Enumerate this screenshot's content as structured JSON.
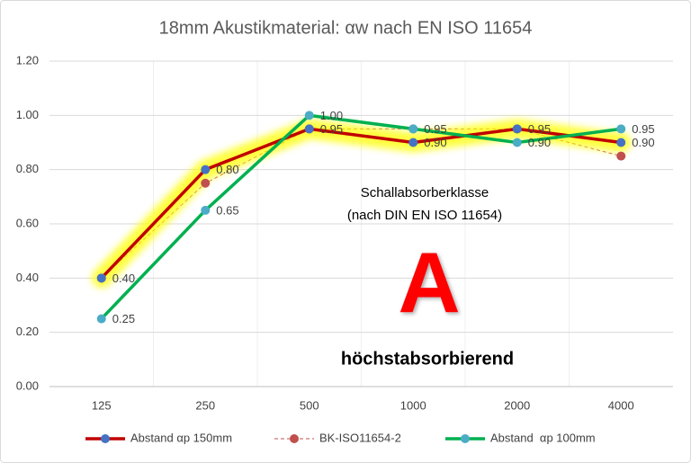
{
  "chart_data": {
    "type": "line",
    "title": "18mm Akustikmaterial: αw nach EN ISO 11654",
    "categories": [
      "125",
      "250",
      "500",
      "1000",
      "2000",
      "4000"
    ],
    "series": [
      {
        "name": "Abstand αp 150mm",
        "color": "#C00000",
        "marker_color": "#4472C4",
        "glow": true,
        "values": [
          0.4,
          0.8,
          0.95,
          0.9,
          0.95,
          0.9
        ],
        "value_labels": [
          "0.40",
          "0.80",
          "0.95",
          "0.90",
          "0.95",
          "0.90"
        ]
      },
      {
        "name": "BK-ISO11654-2",
        "color": "#C0504D",
        "marker_color": "#C0504D",
        "dashed": true,
        "values": [
          0.4,
          0.75,
          0.95,
          0.95,
          0.95,
          0.85
        ]
      },
      {
        "name": "Abstand  αp 100mm",
        "color": "#00B050",
        "marker_color": "#4BACC6",
        "values": [
          0.25,
          0.65,
          1.0,
          0.95,
          0.9,
          0.95
        ],
        "value_labels": [
          "0.25",
          "0.65",
          "1.00",
          "0.95",
          "0.90",
          "0.95"
        ]
      }
    ],
    "ylim": [
      0,
      1.2
    ],
    "yticks": [
      {
        "value": 0,
        "label": "0.00"
      },
      {
        "value": 0.2,
        "label": "0.20"
      },
      {
        "value": 0.4,
        "label": "0.40"
      },
      {
        "value": 0.6,
        "label": "0.60"
      },
      {
        "value": 0.8,
        "label": "0.80"
      },
      {
        "value": 1.0,
        "label": "1.00"
      },
      {
        "value": 1.2,
        "label": "1.20"
      }
    ],
    "grid": true,
    "legend": "bottom",
    "annotations": [
      "Schallabsorberklasse",
      "(nach DIN EN ISO 11654)",
      "A",
      "höchstabsorbierend"
    ]
  }
}
